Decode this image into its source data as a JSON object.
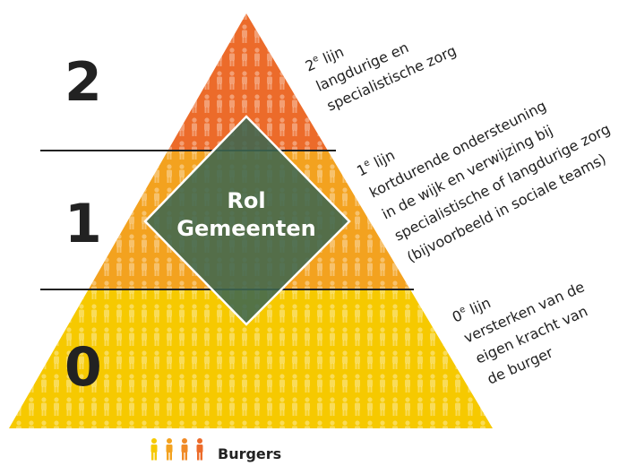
{
  "levels": [
    {
      "number": "2",
      "title": {
        "base": "2",
        "sup": "e",
        "rest": " lijn"
      },
      "lines": [
        "langdurige en",
        "specialistische zorg"
      ]
    },
    {
      "number": "1",
      "title": {
        "base": "1",
        "sup": "e",
        "rest": " lijn"
      },
      "lines": [
        "kortdurende ondersteuning",
        "in de wijk en verwijzing bij",
        "specialistische of langdurige zorg",
        "(bijvoorbeeld in sociale teams)"
      ]
    },
    {
      "number": "0",
      "title": {
        "base": "0",
        "sup": "e",
        "rest": " lijn"
      },
      "lines": [
        "versterken van de",
        "eigen kracht van",
        "de burger"
      ]
    }
  ],
  "center": {
    "lines": [
      "Rol",
      "Gemeenten"
    ]
  },
  "legend": {
    "label": "Burgers"
  }
}
